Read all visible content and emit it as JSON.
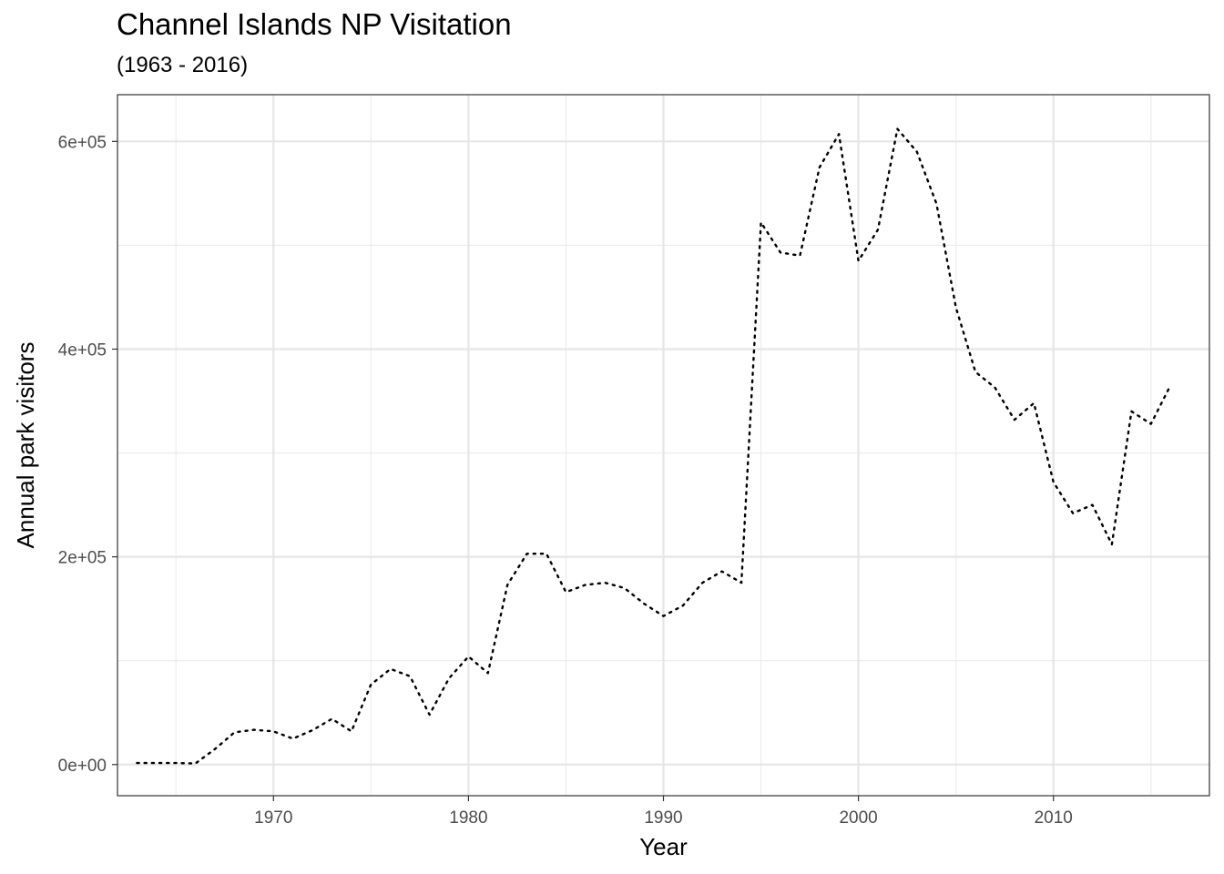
{
  "chart_data": {
    "type": "line",
    "title": "Channel Islands NP Visitation",
    "subtitle": "(1963 - 2016)",
    "xlabel": "Year",
    "ylabel": "Annual park visitors",
    "xlim": [
      1962,
      2018
    ],
    "ylim": [
      -30000,
      645000
    ],
    "x_ticks": [
      1970,
      1980,
      1990,
      2000,
      2010
    ],
    "x_tick_labels": [
      "1970",
      "1980",
      "1990",
      "2000",
      "2010"
    ],
    "y_ticks": [
      0,
      200000,
      400000,
      600000
    ],
    "y_tick_labels": [
      "0e+00",
      "2e+05",
      "4e+05",
      "6e+05"
    ],
    "grid": true,
    "line_style": "dotted",
    "line_color": "#000000",
    "series": [
      {
        "x": [
          1963,
          1964,
          1965,
          1966,
          1967,
          1968,
          1969,
          1970,
          1971,
          1972,
          1973,
          1974,
          1975,
          1976,
          1977,
          1978,
          1979,
          1980,
          1981,
          1982,
          1983,
          1984,
          1985,
          1986,
          1987,
          1988,
          1989,
          1990,
          1991,
          1992,
          1993,
          1994,
          1995,
          1996,
          1997,
          1998,
          1999,
          2000,
          2001,
          2002,
          2003,
          2004,
          2005,
          2006,
          2007,
          2008,
          2009,
          2010,
          2011,
          2012,
          2013,
          2014,
          2015,
          2016
        ],
        "y": [
          1500,
          1500,
          1500,
          1000,
          15000,
          31000,
          33500,
          32000,
          25000,
          33000,
          44000,
          32000,
          77000,
          92000,
          85000,
          48000,
          83000,
          104000,
          88000,
          173000,
          203000,
          203000,
          166000,
          173000,
          175000,
          170000,
          155000,
          143000,
          153000,
          175000,
          186000,
          175000,
          522000,
          493000,
          490000,
          575000,
          607000,
          485000,
          515000,
          612000,
          590000,
          540000,
          440000,
          378000,
          363000,
          332000,
          348000,
          272000,
          242000,
          250000,
          212000,
          340000,
          328000,
          365000
        ]
      }
    ]
  }
}
